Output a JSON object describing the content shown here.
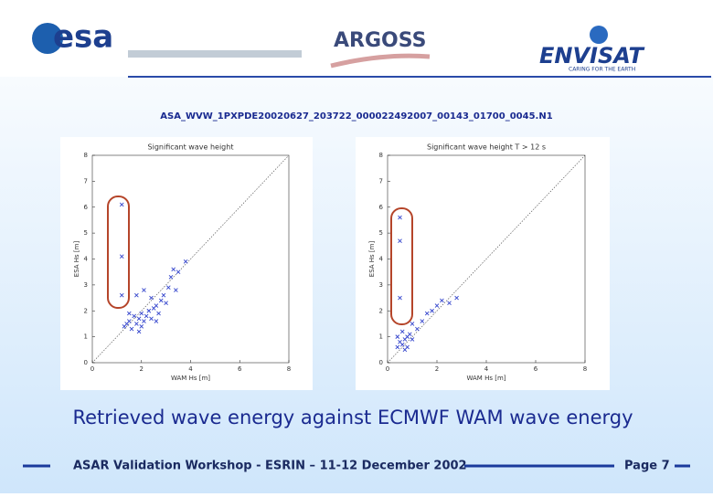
{
  "header": {
    "esa": "esa",
    "argoss": "ARGOSS",
    "envisat": "ENVISAT",
    "tagline": "CARING FOR THE EARTH"
  },
  "file_name": "ASA_WVW_1PXPDE20020627_203722_000022492007_00143_01700_0045.N1",
  "caption": "Retrieved wave energy against ECMWF WAM wave energy",
  "footer": {
    "text": "ASAR Validation Workshop - ESRIN – 11-12 December 2002",
    "page": "Page 7"
  },
  "chart_data": [
    {
      "type": "scatter",
      "title": "Significant wave height",
      "xlabel": "WAM Hs [m]",
      "ylabel": "ESA Hs [m]",
      "xlim": [
        0,
        8
      ],
      "xticks": [
        0,
        2,
        4,
        6,
        8
      ],
      "ylim": [
        0,
        8
      ],
      "yticks": [
        0,
        1,
        2,
        3,
        4,
        5,
        6,
        7,
        8
      ],
      "color": "#3344cc",
      "x": [
        1.2,
        1.2,
        1.2,
        1.4,
        1.5,
        1.6,
        1.7,
        1.8,
        1.9,
        2.0,
        2.1,
        2.2,
        2.3,
        2.4,
        2.5,
        2.6,
        2.7,
        2.8,
        2.9,
        3.0,
        3.1,
        3.2,
        3.3,
        3.4,
        3.5,
        1.3,
        1.5,
        2.0,
        2.4,
        2.1,
        1.8,
        3.8,
        2.6,
        1.9
      ],
      "values": [
        6.1,
        4.1,
        2.6,
        1.5,
        1.6,
        1.3,
        1.8,
        1.5,
        1.7,
        1.9,
        1.6,
        1.8,
        2.0,
        1.7,
        2.1,
        2.2,
        1.9,
        2.4,
        2.6,
        2.3,
        2.9,
        3.3,
        3.6,
        2.8,
        3.5,
        1.4,
        1.9,
        1.4,
        2.5,
        2.8,
        2.6,
        3.9,
        1.6,
        1.2
      ]
    },
    {
      "type": "scatter",
      "title": "Significant wave height T > 12 s",
      "xlabel": "WAM Hs [m]",
      "ylabel": "ESA Hs [m]",
      "xlim": [
        0,
        8
      ],
      "xticks": [
        0,
        2,
        4,
        6,
        8
      ],
      "ylim": [
        0,
        8
      ],
      "yticks": [
        0,
        1,
        2,
        3,
        4,
        5,
        6,
        7,
        8
      ],
      "color": "#3344cc",
      "x": [
        0.5,
        0.5,
        0.5,
        0.4,
        0.5,
        0.6,
        0.7,
        0.8,
        0.9,
        1.0,
        0.6,
        0.8,
        1.2,
        1.4,
        1.6,
        1.8,
        2.0,
        2.2,
        2.5,
        2.8,
        1.0,
        0.7,
        0.4
      ],
      "values": [
        5.6,
        4.7,
        2.5,
        0.6,
        0.8,
        0.7,
        0.9,
        1.0,
        1.1,
        0.9,
        1.2,
        0.6,
        1.3,
        1.6,
        1.9,
        2.0,
        2.2,
        2.4,
        2.3,
        2.5,
        1.5,
        0.5,
        1.0
      ]
    }
  ]
}
